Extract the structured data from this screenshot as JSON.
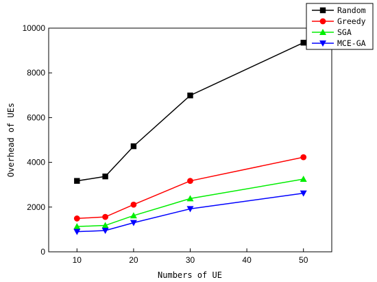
{
  "chart_data": {
    "type": "line",
    "xlabel": "Numbers of UE",
    "ylabel": "Overhead of UEs",
    "xlim": [
      5,
      55
    ],
    "ylim": [
      0,
      10000
    ],
    "x_ticks": [
      10,
      20,
      30,
      40,
      50
    ],
    "y_ticks": [
      0,
      2000,
      4000,
      6000,
      8000,
      10000
    ],
    "grid": false,
    "legend_position": "top-right",
    "x": [
      10,
      15,
      20,
      30,
      50
    ],
    "series": [
      {
        "name": "Random",
        "color": "#000000",
        "marker": "square",
        "values": [
          3170,
          3370,
          4720,
          6990,
          9350
        ]
      },
      {
        "name": "Greedy",
        "color": "#ff0000",
        "marker": "circle",
        "values": [
          1490,
          1560,
          2110,
          3170,
          4230
        ]
      },
      {
        "name": "SGA",
        "color": "#00ee00",
        "marker": "triangle-up",
        "values": [
          1130,
          1180,
          1620,
          2380,
          3250
        ]
      },
      {
        "name": "MCE-GA",
        "color": "#0000ff",
        "marker": "triangle-down",
        "values": [
          900,
          950,
          1300,
          1920,
          2620
        ]
      }
    ]
  }
}
